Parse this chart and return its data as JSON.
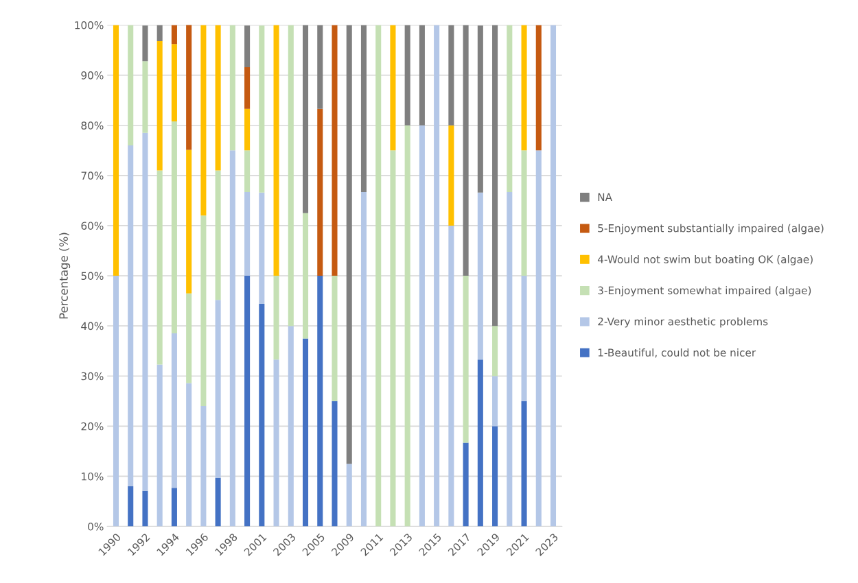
{
  "chart_data": {
    "type": "bar",
    "stacked": true,
    "ylabel": "Percentage (%)",
    "categories": [
      "1990",
      null,
      "1992",
      null,
      "1994",
      null,
      "1996",
      null,
      "1998",
      null,
      "2001",
      null,
      "2003",
      null,
      "2005",
      null,
      "2009",
      null,
      "2011",
      null,
      "2013",
      null,
      "2015",
      null,
      "2017",
      null,
      "2019",
      null,
      "2021",
      null,
      "2023"
    ],
    "series": [
      {
        "name": "1-Beautiful, could not be nicer",
        "color": "#4472c4",
        "values": [
          0,
          8,
          7.1,
          0,
          7.7,
          0,
          0,
          9.7,
          0,
          50,
          44.4,
          0,
          0,
          37.5,
          50,
          25,
          0,
          0,
          0,
          0,
          0,
          0,
          0,
          0,
          16.7,
          33.3,
          20,
          0,
          25,
          0,
          0
        ]
      },
      {
        "name": "2-Very minor aesthetic problems",
        "color": "#b4c7e7",
        "values": [
          50,
          68,
          71.4,
          32.3,
          30.8,
          28.6,
          24,
          35.5,
          75,
          16.7,
          22.2,
          33.3,
          40,
          0,
          0,
          0,
          12.5,
          66.7,
          0,
          0,
          0,
          80,
          100,
          60,
          0,
          33.3,
          10,
          66.7,
          25,
          75,
          100
        ]
      },
      {
        "name": "3-Enjoyment somewhat impaired (algae)",
        "color": "#c5e0b4",
        "values": [
          0,
          24,
          14.3,
          38.7,
          42.3,
          17.9,
          38,
          25.8,
          25,
          8.3,
          33.3,
          16.7,
          60,
          25,
          0,
          25,
          0,
          0,
          100,
          75,
          80,
          0,
          0,
          0,
          33.3,
          0,
          10,
          33.3,
          25,
          0,
          0
        ]
      },
      {
        "name": "4-Would not swim but boating OK (algae)",
        "color": "#ffc000",
        "values": [
          50,
          0,
          0,
          25.8,
          15.4,
          28.6,
          38,
          29,
          0,
          8.3,
          0,
          50,
          0,
          0,
          0,
          0,
          0,
          0,
          0,
          25,
          0,
          0,
          0,
          20,
          0,
          0,
          0,
          0,
          25,
          0,
          0
        ]
      },
      {
        "name": "5-Enjoyment substantially impaired (algae)",
        "color": "#c55a11",
        "values": [
          0,
          0,
          0,
          0,
          3.8,
          25,
          0,
          0,
          0,
          8.3,
          0,
          0,
          0,
          0,
          33.3,
          50,
          0,
          0,
          0,
          0,
          0,
          0,
          0,
          0,
          0,
          0,
          0,
          0,
          0,
          25,
          0
        ]
      },
      {
        "name": "NA",
        "color": "#7f7f7f",
        "values": [
          0,
          0,
          7.1,
          3.2,
          0,
          0,
          0,
          0,
          0,
          8.3,
          0,
          0,
          0,
          37.5,
          16.7,
          0,
          87.5,
          33.3,
          0,
          0,
          20,
          20,
          0,
          20,
          50,
          33.3,
          60,
          0,
          0,
          0,
          0
        ]
      }
    ],
    "ylim": [
      0,
      100
    ],
    "yticks": [
      {
        "value": 0,
        "label": "0%"
      },
      {
        "value": 10,
        "label": "10%"
      },
      {
        "value": 20,
        "label": "20%"
      },
      {
        "value": 30,
        "label": "30%"
      },
      {
        "value": 40,
        "label": "40%"
      },
      {
        "value": 50,
        "label": "50%"
      },
      {
        "value": 60,
        "label": "60%"
      },
      {
        "value": 70,
        "label": "70%"
      },
      {
        "value": 80,
        "label": "80%"
      },
      {
        "value": 90,
        "label": "90%"
      },
      {
        "value": 100,
        "label": "100%"
      }
    ],
    "grid": "y",
    "legend": "right"
  }
}
